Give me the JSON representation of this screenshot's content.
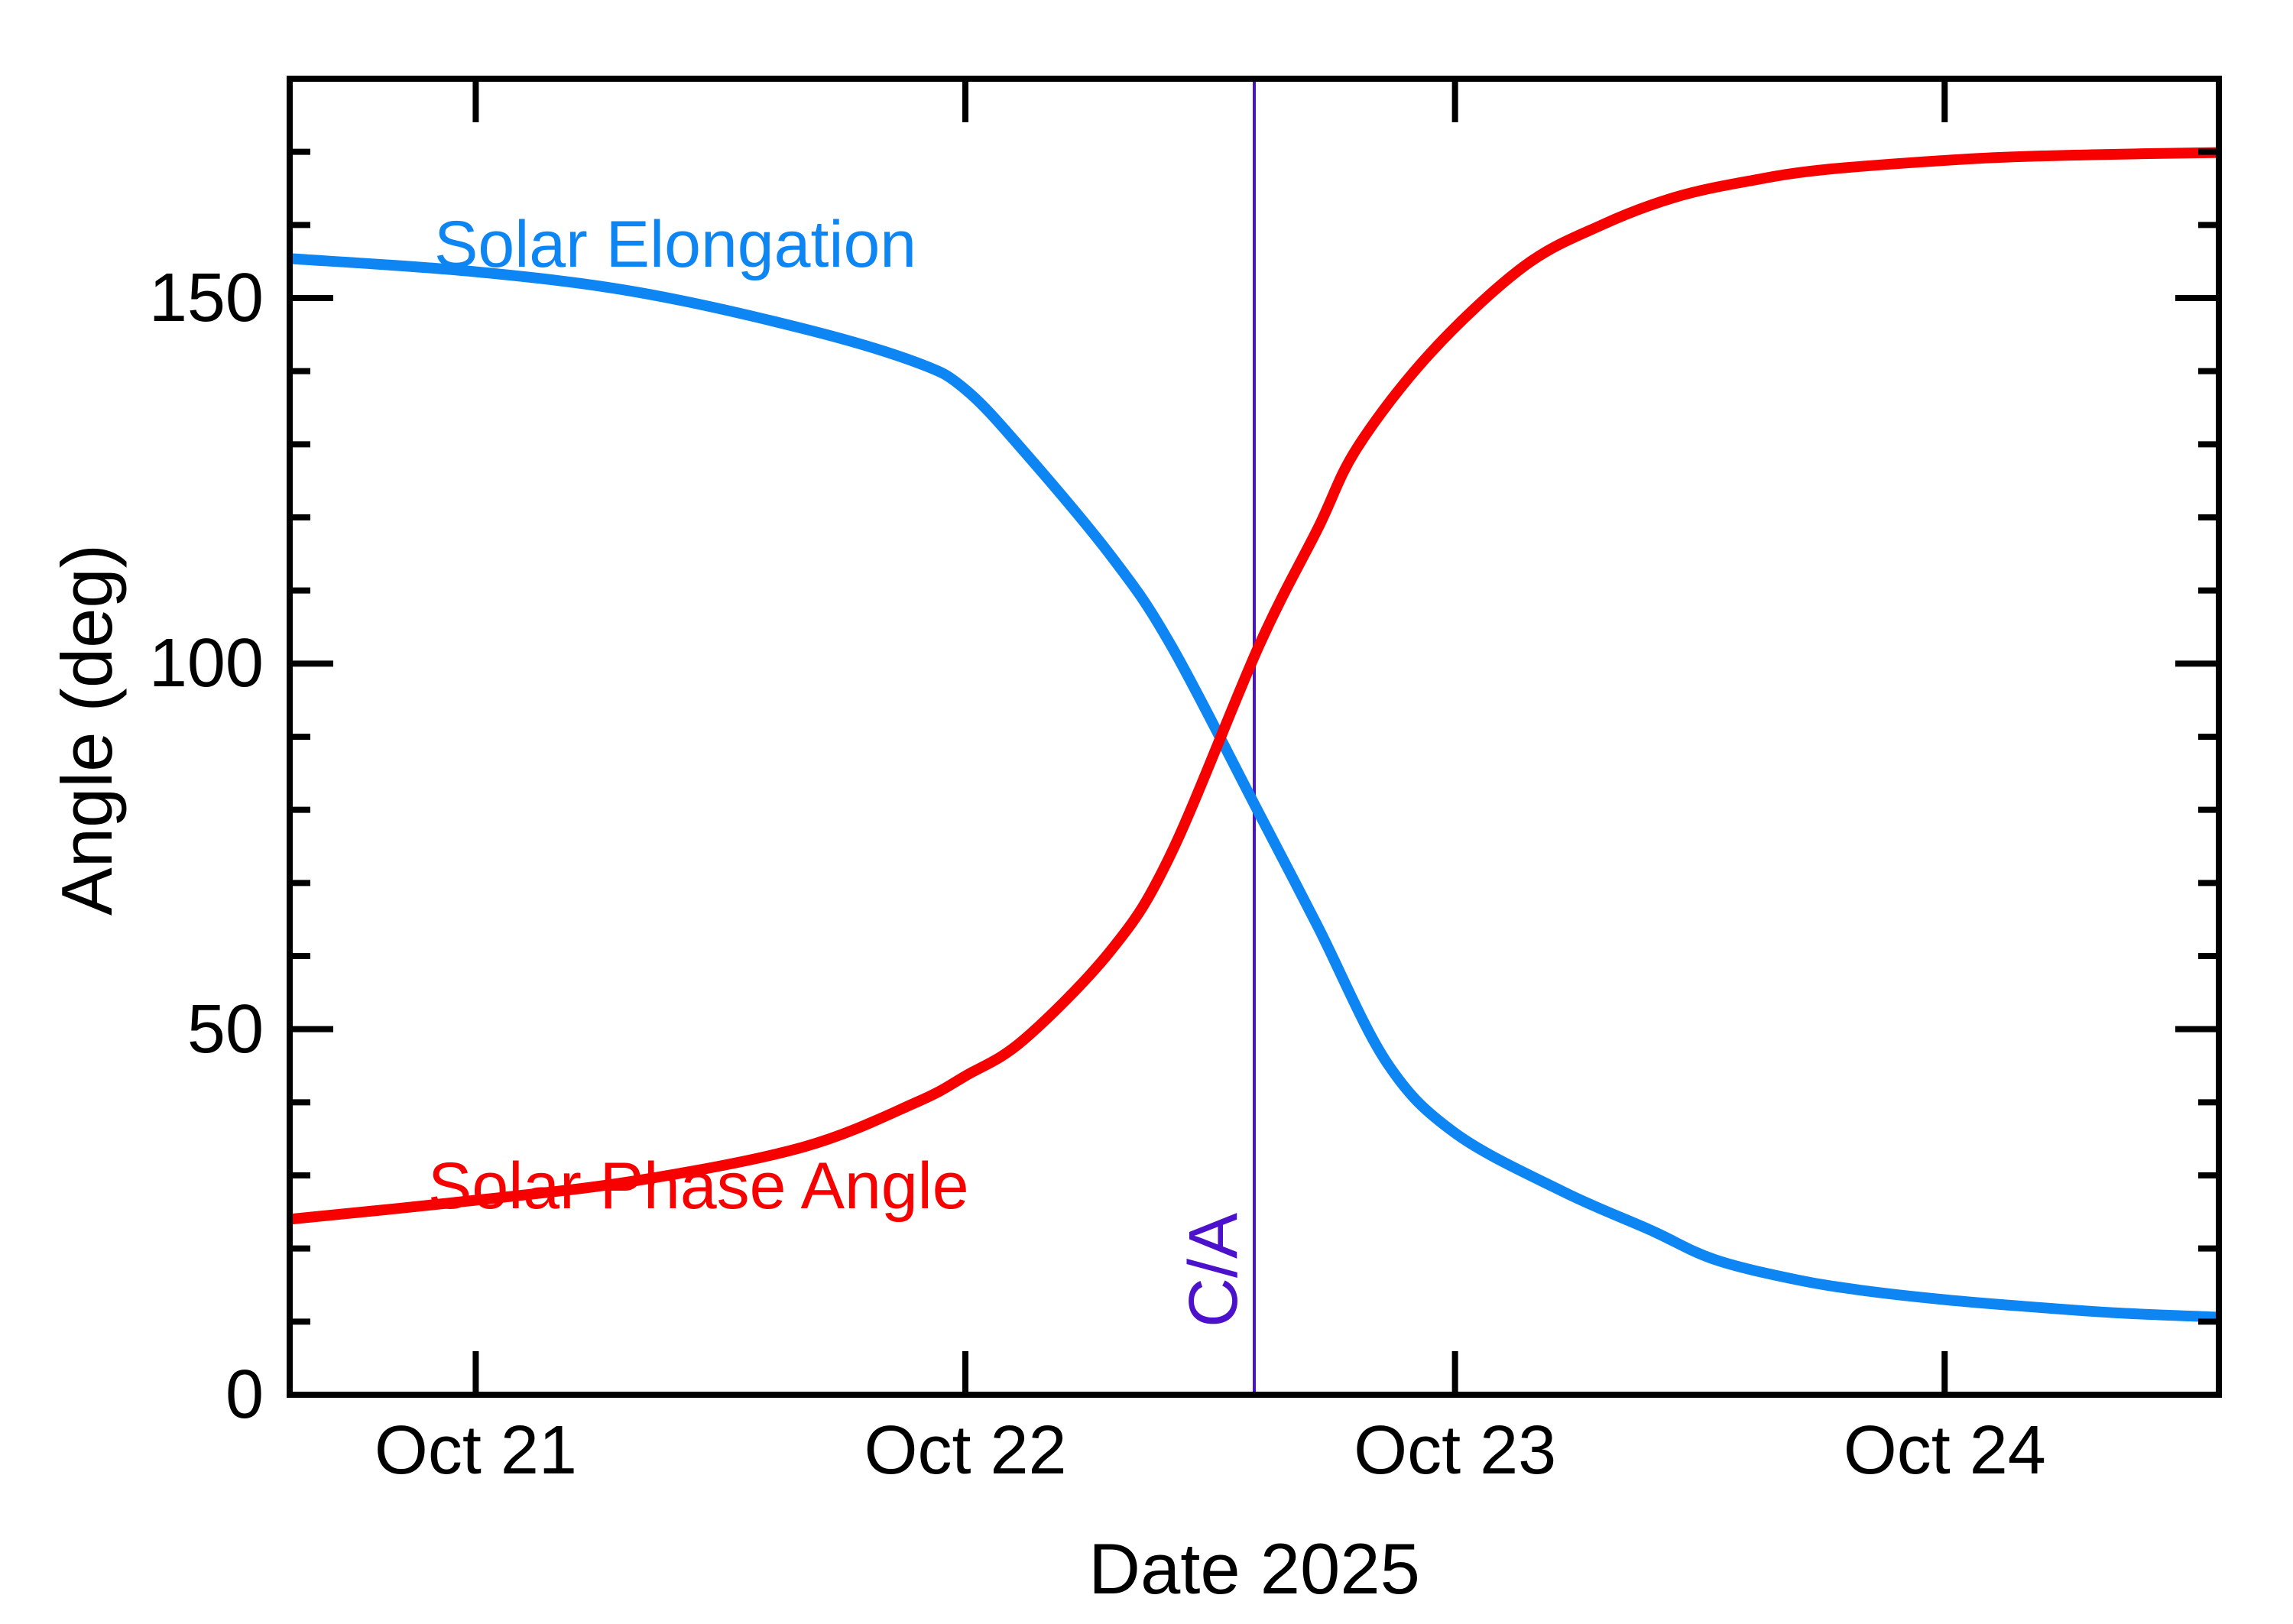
{
  "chart_data": {
    "type": "line",
    "title": "",
    "xlabel": "Date 2025",
    "ylabel": "Angle (deg)",
    "x_unit": "day of October 2025 (fractional)",
    "x_domain": [
      20.62,
      24.56
    ],
    "ylim": [
      0,
      180
    ],
    "grid": false,
    "legend_position": "inline-curve-labels",
    "x_ticks": [
      {
        "value": 21,
        "label": "Oct 21"
      },
      {
        "value": 22,
        "label": "Oct 22"
      },
      {
        "value": 23,
        "label": "Oct 23"
      },
      {
        "value": 24,
        "label": "Oct 24"
      }
    ],
    "y_tick_labels": [
      {
        "value": 0,
        "label": "0"
      },
      {
        "value": 50,
        "label": "50"
      },
      {
        "value": 100,
        "label": "100"
      },
      {
        "value": 150,
        "label": "150"
      }
    ],
    "y_major_ticks": [
      50,
      100,
      150
    ],
    "y_minor_step": 10,
    "series": [
      {
        "name": "Solar Elongation",
        "color": "#0D85F2",
        "points": [
          [
            20.62,
            155.4
          ],
          [
            21.0,
            153.6
          ],
          [
            21.33,
            150.8
          ],
          [
            21.67,
            145.8
          ],
          [
            21.9,
            141.2
          ],
          [
            22.0,
            137.5
          ],
          [
            22.12,
            129.0
          ],
          [
            22.3,
            114.5
          ],
          [
            22.42,
            102.5
          ],
          [
            22.6,
            79.5
          ],
          [
            22.72,
            64.0
          ],
          [
            22.86,
            45.5
          ],
          [
            23.0,
            35.8
          ],
          [
            23.22,
            27.8
          ],
          [
            23.4,
            22.5
          ],
          [
            23.53,
            18.5
          ],
          [
            23.7,
            15.7
          ],
          [
            23.84,
            14.2
          ],
          [
            24.0,
            13.0
          ],
          [
            24.16,
            12.1
          ],
          [
            24.35,
            11.2
          ],
          [
            24.56,
            10.6
          ]
        ]
      },
      {
        "name": "Solar Phase Angle",
        "color": "#F60000",
        "points": [
          [
            20.62,
            24.0
          ],
          [
            21.0,
            26.6
          ],
          [
            21.33,
            29.3
          ],
          [
            21.67,
            33.9
          ],
          [
            21.9,
            40.0
          ],
          [
            22.0,
            43.6
          ],
          [
            22.12,
            48.6
          ],
          [
            22.3,
            61.0
          ],
          [
            22.42,
            74.0
          ],
          [
            22.6,
            102.5
          ],
          [
            22.72,
            118.5
          ],
          [
            22.8,
            129.5
          ],
          [
            22.95,
            142.5
          ],
          [
            23.14,
            154.3
          ],
          [
            23.3,
            160.0
          ],
          [
            23.45,
            163.8
          ],
          [
            23.6,
            166.0
          ],
          [
            23.76,
            167.6
          ],
          [
            24.07,
            169.1
          ],
          [
            24.3,
            169.6
          ],
          [
            24.56,
            169.9
          ]
        ]
      }
    ],
    "annotations": [
      {
        "type": "vline",
        "label": "C/A",
        "x": 22.59,
        "color": "#4C12CB"
      }
    ],
    "axis_color": "#000000",
    "background_color": "#ffffff"
  }
}
